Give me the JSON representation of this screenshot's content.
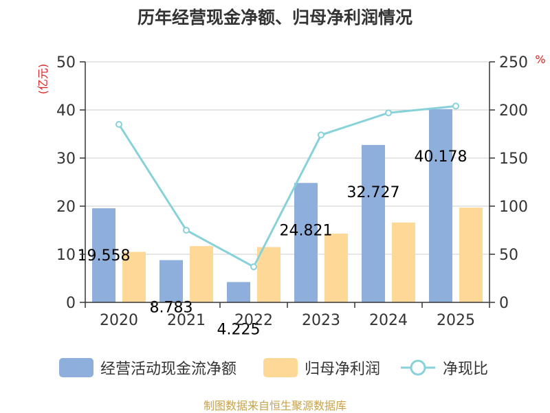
{
  "title": "历年经营现金净额、归母净利润情况",
  "chart_data": {
    "type": "bar",
    "categories": [
      "2020",
      "2021",
      "2022",
      "2023",
      "2024",
      "2025"
    ],
    "series": [
      {
        "name": "经营活动现金流净额",
        "type": "bar",
        "axis": "left",
        "values": [
          19.558,
          8.783,
          4.225,
          24.821,
          32.727,
          40.178
        ],
        "labels": [
          "19.558",
          "8.783",
          "4.225",
          "24.821",
          "32.727",
          "40.178"
        ],
        "color": "#8eaedb"
      },
      {
        "name": "归母净利润",
        "type": "bar",
        "axis": "left",
        "values": [
          10.5,
          11.7,
          11.5,
          14.3,
          16.6,
          19.7
        ],
        "color": "#fed897"
      },
      {
        "name": "净现比",
        "type": "line",
        "axis": "right",
        "values": [
          185,
          75,
          37,
          174,
          197,
          204
        ],
        "color": "#87d1d9"
      }
    ],
    "left_axis": {
      "unit": "(亿元)",
      "min": 0,
      "max": 50,
      "ticks": [
        "0",
        "10",
        "20",
        "30",
        "40",
        "50"
      ]
    },
    "right_axis": {
      "unit": "%",
      "min": 0,
      "max": 250,
      "ticks": [
        "0",
        "50",
        "100",
        "150",
        "200",
        "250"
      ]
    }
  },
  "legend": {
    "items": [
      "经营活动现金流净额",
      "归母净利润",
      "净现比"
    ]
  },
  "source": "制图数据来自恒生聚源数据库"
}
